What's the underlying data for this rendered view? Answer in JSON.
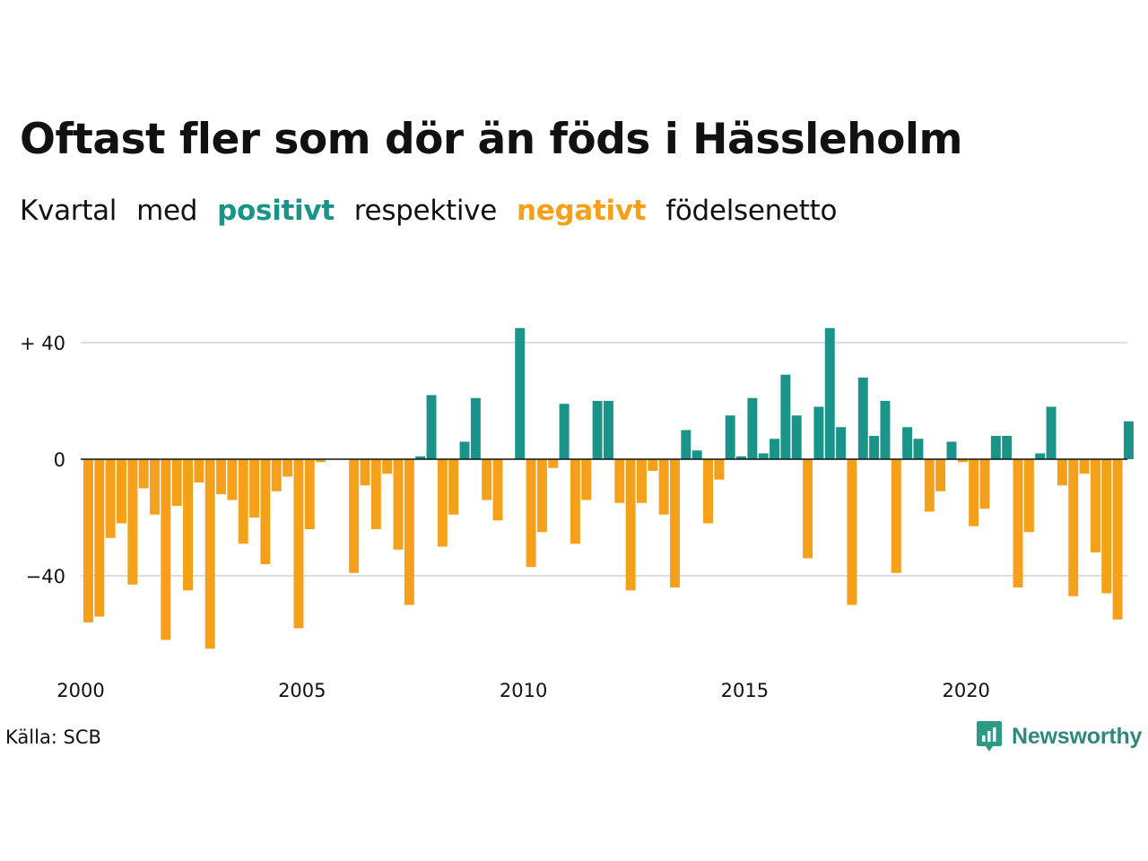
{
  "title": "Oftast fler som dör än föds i Hässleholm",
  "subtitle": {
    "part1": "Kvartal",
    "part2": "med",
    "positive_word": "positivt",
    "part3": "respektive",
    "negative_word": "negativt",
    "part4": "födelsenetto"
  },
  "colors": {
    "positive": "#1a9388",
    "negative": "#f5a01a",
    "gridline": "#dddddd",
    "zeroline": "#111111",
    "logo_icon": "#2e9a84",
    "logo_text": "#2e8a78"
  },
  "source": "Källa: SCB",
  "logo": {
    "text": "Newsworthy",
    "icon": "newsworthy-logo-icon"
  },
  "chart_data": {
    "type": "bar",
    "title": "Oftast fler som dör än föds i Hässleholm",
    "xlabel": "",
    "ylabel": "",
    "x_start": 2000,
    "x_step": 0.25,
    "x_ticks": [
      2000,
      2005,
      2010,
      2015,
      2020
    ],
    "x_tick_labels": [
      "2000",
      "2005",
      "2010",
      "2015",
      "2020"
    ],
    "y_ticks": [
      40,
      0,
      -40
    ],
    "y_tick_labels": [
      "+ 40",
      "0",
      "−40"
    ],
    "ylim": [
      -66,
      46
    ],
    "grid": true,
    "values": [
      -56,
      -54,
      -27,
      -22,
      -43,
      -10,
      -19,
      -62,
      -16,
      -45,
      -8,
      -65,
      -12,
      -14,
      -29,
      -20,
      -36,
      -11,
      -6,
      -58,
      -24,
      -1,
      0,
      0,
      -39,
      -9,
      -24,
      -5,
      -31,
      -50,
      1,
      22,
      -30,
      -19,
      6,
      21,
      -14,
      -21,
      0,
      45,
      -37,
      -25,
      -3,
      19,
      -29,
      -14,
      20,
      20,
      -15,
      -45,
      -15,
      -4,
      -19,
      -44,
      10,
      3,
      -22,
      -7,
      15,
      1,
      21,
      2,
      7,
      29,
      15,
      -34,
      18,
      45,
      11,
      -50,
      28,
      8,
      20,
      -39,
      11,
      7,
      -18,
      -11,
      6,
      -1,
      -23,
      -17,
      8,
      8,
      -44,
      -25,
      2,
      18,
      -9,
      -47,
      -5,
      -32,
      -46,
      -55,
      13
    ]
  }
}
